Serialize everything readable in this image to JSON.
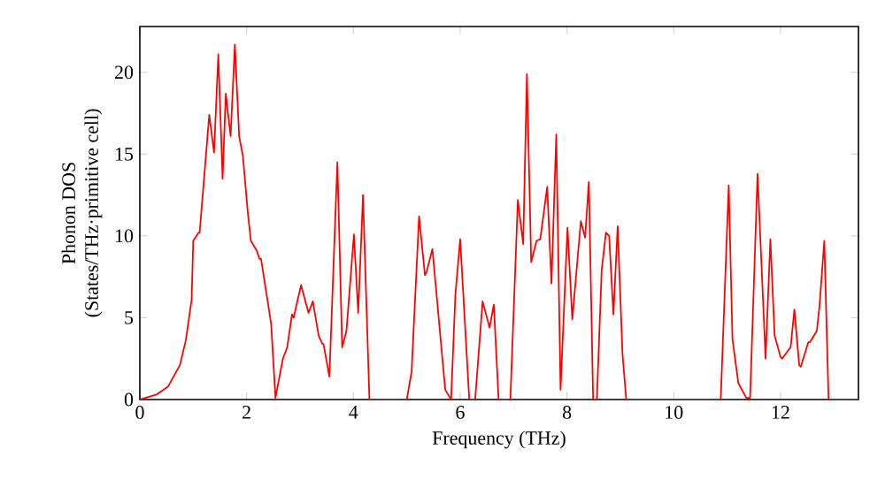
{
  "chart_data": {
    "type": "line",
    "xlabel": "Frequency (THz)",
    "ylabel": "Phonon DOS\n(States/THz·primitive cell)",
    "xlim": [
      0,
      13.46
    ],
    "ylim": [
      0,
      22.8
    ],
    "xticks": [
      0,
      2,
      4,
      6,
      8,
      10,
      12
    ],
    "yticks": [
      0,
      5,
      10,
      15,
      20
    ],
    "marker": "none",
    "line_style": "solid",
    "series": [
      {
        "color": "#ff0000",
        "x": [
          0,
          0.31,
          0.53,
          0.75,
          0.86,
          0.97,
          1.0,
          1.1,
          1.12,
          1.3,
          1.39,
          1.47,
          1.55,
          1.61,
          1.7,
          1.78,
          1.86,
          1.93,
          2.02,
          2.08,
          2.19,
          2.24,
          2.27,
          2.39,
          2.46,
          2.54,
          2.68,
          2.76,
          2.85,
          2.88,
          3.02,
          3.16,
          3.24,
          3.35,
          3.42,
          3.44,
          3.55,
          3.7,
          3.79,
          3.87,
          4.01,
          4.09,
          4.18,
          4.3,
          5.0,
          5.09,
          5.23,
          5.34,
          5.37,
          5.48,
          5.72,
          5.83,
          5.91,
          6.0,
          6.17,
          6.28,
          6.42,
          6.55,
          6.63,
          6.72,
          6.94,
          7.08,
          7.18,
          7.25,
          7.33,
          7.43,
          7.5,
          7.63,
          7.71,
          7.8,
          7.88,
          8.01,
          8.1,
          8.26,
          8.34,
          8.41,
          8.49,
          8.56,
          8.65,
          8.73,
          8.79,
          8.87,
          8.95,
          9.04,
          9.11,
          10.88,
          11.03,
          11.1,
          11.21,
          11.36,
          11.43,
          11.57,
          11.72,
          11.81,
          11.89,
          12.0,
          12.03,
          12.19,
          12.26,
          12.35,
          12.38,
          12.52,
          12.55,
          12.68,
          12.73,
          12.82,
          12.9,
          13.46
        ],
        "values": [
          0,
          0.3,
          0.8,
          2.1,
          3.6,
          6.1,
          9.7,
          10.2,
          10.2,
          17.4,
          15.1,
          21.1,
          13.5,
          18.7,
          16.1,
          21.7,
          16.1,
          14.9,
          11.5,
          9.7,
          9.1,
          8.6,
          8.6,
          6.1,
          4.6,
          0.1,
          2.5,
          3.2,
          5.2,
          5.0,
          7.0,
          5.3,
          6.0,
          3.9,
          3.4,
          3.4,
          1.4,
          14.5,
          3.2,
          4.2,
          10.1,
          5.3,
          12.5,
          0,
          0,
          1.7,
          11.2,
          7.6,
          7.8,
          9.2,
          0.6,
          0,
          6.4,
          9.8,
          0,
          0,
          6.0,
          4.4,
          5.8,
          0,
          0,
          12.2,
          9.5,
          19.9,
          8.4,
          9.7,
          9.8,
          13.0,
          7.1,
          16.2,
          0.6,
          10.5,
          4.9,
          10.9,
          9.9,
          13.3,
          0,
          0,
          7.9,
          10.2,
          10.0,
          5.2,
          10.6,
          2.8,
          0,
          0,
          13.1,
          3.7,
          1.0,
          0.1,
          0.1,
          13.8,
          2.5,
          9.8,
          3.9,
          2.6,
          2.5,
          3.2,
          5.5,
          2.1,
          2.0,
          3.5,
          3.5,
          4.2,
          5.7,
          9.7,
          0,
          0
        ]
      }
    ]
  }
}
